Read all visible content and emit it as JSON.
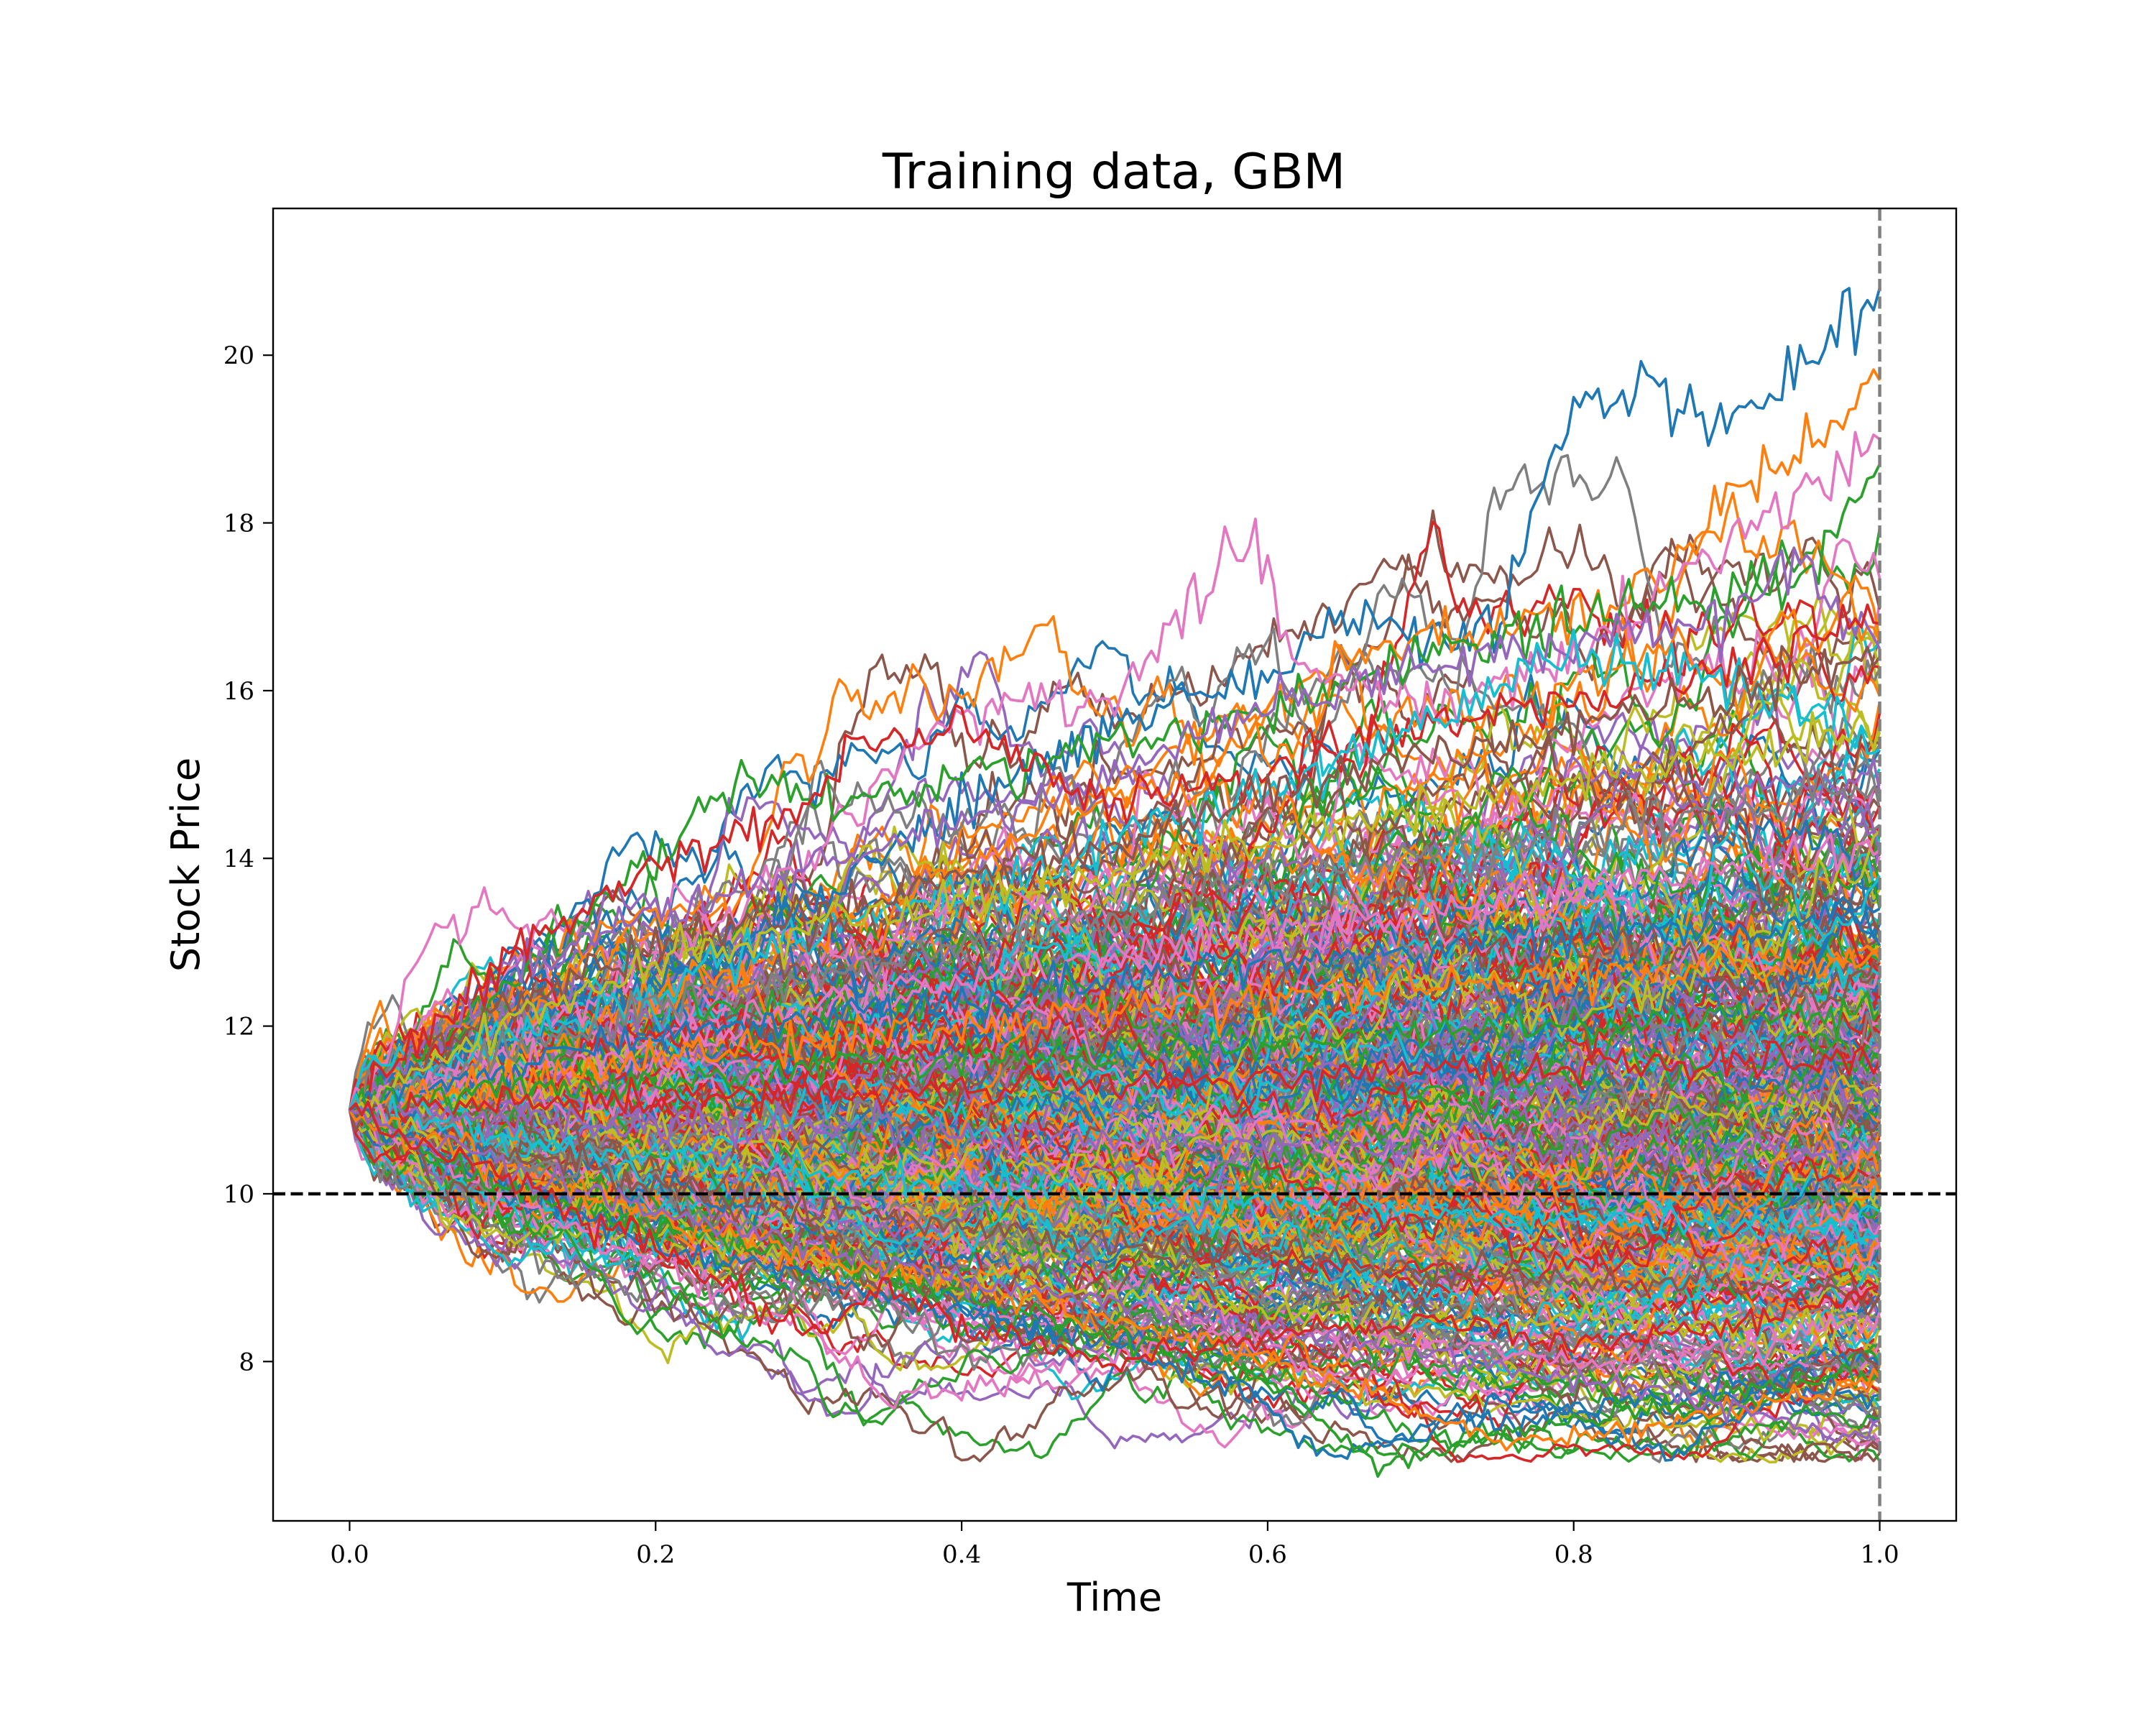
{
  "chart_data": {
    "type": "line",
    "title": "Training data, GBM",
    "xlabel": "Time",
    "ylabel": "Stock Price",
    "xlim": [
      -0.05,
      1.05
    ],
    "ylim": [
      6.1,
      21.75
    ],
    "x_ticks": [
      0.0,
      0.2,
      0.4,
      0.6,
      0.8,
      1.0
    ],
    "x_tick_labels": [
      "0.0",
      "0.2",
      "0.4",
      "0.6",
      "0.8",
      "1.0"
    ],
    "y_ticks": [
      8,
      10,
      12,
      14,
      16,
      18,
      20
    ],
    "y_tick_labels": [
      "8",
      "10",
      "12",
      "14",
      "16",
      "18",
      "20"
    ],
    "grid": false,
    "legend": "none",
    "reference_lines": [
      {
        "orientation": "horizontal",
        "value": 10,
        "style": "dashed",
        "color": "#000000"
      },
      {
        "orientation": "vertical",
        "value": 1.0,
        "style": "dashed",
        "color": "#808080"
      }
    ],
    "paths": {
      "start_value": 11.0,
      "time_start": 0.0,
      "time_end": 1.0,
      "min_value": 6.8,
      "max_value": 21.0,
      "palette": [
        "#1f77b4",
        "#ff7f0e",
        "#2ca02c",
        "#d62728",
        "#9467bd",
        "#8c564b",
        "#e377c2",
        "#7f7f7f",
        "#bcbd22",
        "#17becf"
      ]
    },
    "series": [
      {
        "color": "#1f77b4",
        "x": [
          0.0,
          0.1,
          0.2,
          0.3,
          0.4,
          0.5,
          0.6,
          0.65,
          0.7,
          0.75,
          0.8,
          0.85,
          0.9,
          0.95,
          1.0
        ],
        "values": [
          11.0,
          11.8,
          12.5,
          13.4,
          14.6,
          15.6,
          16.2,
          16.9,
          16.7,
          16.8,
          19.5,
          19.6,
          19.3,
          19.9,
          20.8
        ]
      },
      {
        "color": "#ff7f0e",
        "x": [
          0.0,
          0.1,
          0.2,
          0.3,
          0.4,
          0.5,
          0.6,
          0.7,
          0.8,
          0.85,
          0.9,
          0.95,
          1.0
        ],
        "values": [
          11.0,
          11.5,
          12.3,
          13.0,
          14.0,
          14.8,
          15.9,
          16.7,
          16.9,
          17.2,
          18.2,
          18.9,
          19.7
        ]
      },
      {
        "color": "#e377c2",
        "x": [
          0.0,
          0.1,
          0.2,
          0.3,
          0.4,
          0.5,
          0.55,
          0.59,
          0.62,
          0.7,
          0.8,
          0.9,
          0.95,
          1.0
        ],
        "values": [
          11.0,
          11.7,
          12.8,
          14.0,
          15.8,
          15.9,
          16.9,
          17.9,
          16.3,
          15.8,
          16.3,
          17.8,
          18.4,
          19.0
        ]
      },
      {
        "color": "#2ca02c",
        "x": [
          0.0,
          0.1,
          0.2,
          0.26,
          0.3,
          0.4,
          0.5,
          0.6,
          0.7,
          0.8,
          0.9,
          0.95,
          1.0
        ],
        "values": [
          11.0,
          12.5,
          14.0,
          15.0,
          14.6,
          15.0,
          15.4,
          15.7,
          16.4,
          16.9,
          17.1,
          17.4,
          18.7
        ]
      },
      {
        "color": "#9467bd",
        "x": [
          0.0,
          0.1,
          0.2,
          0.3,
          0.4,
          0.5,
          0.6,
          0.7,
          0.8,
          0.9,
          0.95,
          1.0
        ],
        "values": [
          11.0,
          12.6,
          13.4,
          13.9,
          14.5,
          15.0,
          15.8,
          16.2,
          16.6,
          16.9,
          17.6,
          16.5
        ]
      },
      {
        "color": "#d62728",
        "x": [
          0.0,
          0.1,
          0.2,
          0.3,
          0.33,
          0.4,
          0.5,
          0.6,
          0.7,
          0.8,
          0.9,
          1.0
        ],
        "values": [
          11.0,
          12.8,
          13.9,
          14.6,
          15.4,
          15.6,
          14.6,
          15.0,
          15.6,
          15.9,
          16.3,
          16.8
        ]
      },
      {
        "color": "#17becf",
        "x": [
          0.0,
          0.1,
          0.2,
          0.3,
          0.4,
          0.5,
          0.6,
          0.7,
          0.8,
          0.9,
          1.0
        ],
        "values": [
          11.0,
          11.8,
          12.4,
          13.1,
          13.6,
          14.2,
          14.8,
          15.6,
          16.4,
          16.2,
          15.3
        ]
      },
      {
        "color": "#8c564b",
        "x": [
          0.0,
          0.1,
          0.2,
          0.3,
          0.4,
          0.5,
          0.6,
          0.7,
          0.8,
          0.9,
          1.0
        ],
        "values": [
          11.0,
          12.2,
          13.0,
          13.3,
          13.8,
          14.2,
          14.8,
          15.2,
          15.6,
          16.0,
          16.4
        ]
      },
      {
        "color": "#bcbd22",
        "x": [
          0.0,
          0.1,
          0.2,
          0.3,
          0.4,
          0.5,
          0.6,
          0.7,
          0.8,
          0.9,
          1.0
        ],
        "values": [
          11.0,
          12.0,
          12.8,
          13.2,
          13.5,
          13.8,
          14.2,
          14.6,
          14.9,
          15.2,
          15.6
        ]
      },
      {
        "color": "#7f7f7f",
        "x": [
          0.0,
          0.1,
          0.2,
          0.3,
          0.4,
          0.5,
          0.6,
          0.7,
          0.8,
          0.9,
          1.0
        ],
        "values": [
          11.0,
          11.6,
          12.2,
          12.6,
          13.0,
          13.3,
          13.7,
          14.0,
          14.3,
          14.6,
          14.8
        ]
      },
      {
        "color": "#e377c2",
        "x": [
          0.0,
          0.1,
          0.2,
          0.3,
          0.4,
          0.5,
          0.6,
          0.7,
          0.8,
          0.9,
          1.0
        ],
        "values": [
          11.0,
          11.4,
          11.8,
          12.2,
          12.5,
          12.8,
          13.1,
          13.3,
          13.6,
          13.9,
          14.1
        ]
      },
      {
        "color": "#1f77b4",
        "x": [
          0.0,
          0.1,
          0.2,
          0.3,
          0.4,
          0.5,
          0.6,
          0.7,
          0.8,
          0.9,
          1.0
        ],
        "values": [
          11.0,
          11.5,
          11.9,
          12.1,
          12.3,
          12.5,
          12.7,
          12.9,
          13.1,
          13.2,
          13.4
        ]
      },
      {
        "color": "#ff7f0e",
        "x": [
          0.0,
          0.1,
          0.2,
          0.3,
          0.4,
          0.5,
          0.6,
          0.7,
          0.8,
          0.9,
          1.0
        ],
        "values": [
          11.0,
          11.3,
          11.6,
          11.8,
          12.0,
          12.2,
          12.3,
          12.5,
          12.6,
          12.7,
          12.8
        ]
      },
      {
        "color": "#2ca02c",
        "x": [
          0.0,
          0.1,
          0.2,
          0.3,
          0.4,
          0.5,
          0.6,
          0.7,
          0.8,
          0.9,
          1.0
        ],
        "values": [
          11.0,
          11.2,
          11.3,
          11.5,
          11.6,
          11.7,
          11.8,
          11.9,
          12.0,
          12.1,
          12.2
        ]
      },
      {
        "color": "#d62728",
        "x": [
          0.0,
          0.1,
          0.2,
          0.3,
          0.4,
          0.5,
          0.6,
          0.7,
          0.8,
          0.9,
          1.0
        ],
        "values": [
          11.0,
          11.1,
          11.1,
          11.2,
          11.3,
          11.3,
          11.4,
          11.5,
          11.5,
          11.6,
          11.6
        ]
      },
      {
        "color": "#9467bd",
        "x": [
          0.0,
          0.1,
          0.2,
          0.3,
          0.4,
          0.5,
          0.6,
          0.7,
          0.8,
          0.9,
          1.0
        ],
        "values": [
          11.0,
          10.9,
          10.8,
          10.8,
          10.7,
          10.7,
          10.6,
          10.6,
          10.5,
          10.5,
          10.5
        ]
      },
      {
        "color": "#17becf",
        "x": [
          0.0,
          0.1,
          0.2,
          0.3,
          0.4,
          0.5,
          0.6,
          0.7,
          0.8,
          0.9,
          1.0
        ],
        "values": [
          11.0,
          10.7,
          10.4,
          10.3,
          10.1,
          10.0,
          9.9,
          9.8,
          9.7,
          9.6,
          9.5
        ]
      },
      {
        "color": "#8c564b",
        "x": [
          0.0,
          0.1,
          0.2,
          0.3,
          0.4,
          0.5,
          0.6,
          0.7,
          0.8,
          0.9,
          1.0
        ],
        "values": [
          11.0,
          10.5,
          10.1,
          9.8,
          9.6,
          9.4,
          9.3,
          9.1,
          9.0,
          8.9,
          8.8
        ]
      },
      {
        "color": "#bcbd22",
        "x": [
          0.0,
          0.1,
          0.2,
          0.3,
          0.4,
          0.5,
          0.6,
          0.7,
          0.8,
          0.9,
          1.0
        ],
        "values": [
          11.0,
          10.3,
          9.6,
          9.2,
          8.9,
          8.8,
          8.6,
          8.5,
          8.5,
          8.4,
          8.4
        ]
      },
      {
        "color": "#e377c2",
        "x": [
          0.0,
          0.1,
          0.2,
          0.3,
          0.35,
          0.4,
          0.5,
          0.6,
          0.7,
          0.8,
          0.9,
          1.0
        ],
        "values": [
          11.0,
          10.0,
          9.2,
          8.4,
          7.6,
          7.6,
          8.1,
          8.4,
          8.2,
          8.0,
          8.1,
          8.6
        ]
      },
      {
        "color": "#1f77b4",
        "x": [
          0.0,
          0.1,
          0.2,
          0.3,
          0.4,
          0.5,
          0.6,
          0.62,
          0.65,
          0.7,
          0.8,
          0.9,
          1.0
        ],
        "values": [
          11.0,
          10.2,
          9.4,
          9.0,
          8.6,
          8.2,
          7.5,
          7.1,
          6.9,
          7.2,
          7.4,
          7.7,
          7.6
        ]
      },
      {
        "color": "#2ca02c",
        "x": [
          0.0,
          0.1,
          0.2,
          0.3,
          0.4,
          0.5,
          0.6,
          0.67,
          0.7,
          0.8,
          0.9,
          1.0
        ],
        "values": [
          11.0,
          10.1,
          9.6,
          9.3,
          8.8,
          8.3,
          7.8,
          6.8,
          6.9,
          7.3,
          7.6,
          7.9
        ]
      },
      {
        "color": "#ff7f0e",
        "x": [
          0.0,
          0.1,
          0.2,
          0.3,
          0.4,
          0.5,
          0.6,
          0.7,
          0.75,
          0.8,
          0.9,
          1.0
        ],
        "values": [
          11.0,
          10.2,
          9.7,
          9.3,
          8.9,
          8.5,
          8.0,
          7.4,
          7.0,
          7.1,
          7.4,
          7.8
        ]
      },
      {
        "color": "#9467bd",
        "x": [
          0.0,
          0.1,
          0.2,
          0.3,
          0.4,
          0.5,
          0.6,
          0.7,
          0.8,
          0.9,
          0.97,
          1.0
        ],
        "values": [
          11.0,
          10.3,
          9.8,
          9.4,
          9.0,
          8.7,
          8.4,
          8.1,
          7.8,
          7.5,
          7.1,
          7.3
        ]
      },
      {
        "color": "#d62728",
        "x": [
          0.0,
          0.1,
          0.2,
          0.3,
          0.35,
          0.4,
          0.5,
          0.6,
          0.7,
          0.8,
          0.9,
          1.0
        ],
        "values": [
          11.0,
          10.2,
          9.4,
          8.3,
          8.9,
          8.4,
          8.0,
          8.3,
          8.5,
          8.2,
          8.4,
          8.9
        ]
      }
    ]
  }
}
